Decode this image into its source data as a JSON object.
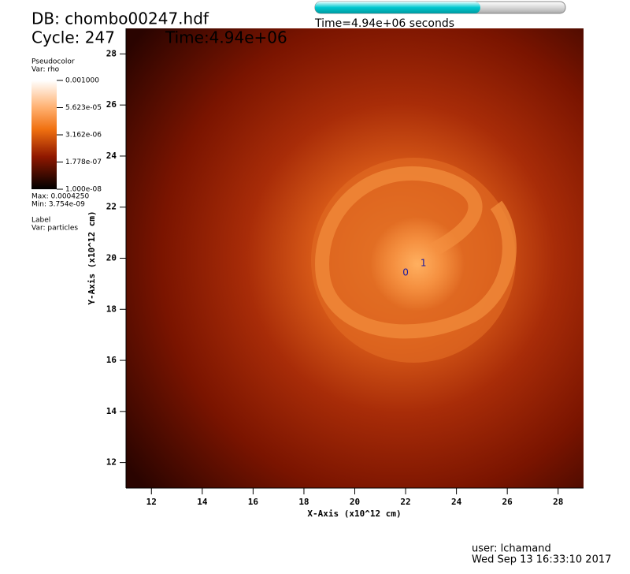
{
  "header": {
    "db": "DB: chombo00247.hdf",
    "cycle": "Cycle: 247",
    "time": "Time:4.94e+06"
  },
  "slider": {
    "label": "Time=4.94e+06 seconds",
    "fraction": 0.66
  },
  "legend": {
    "title": "Pseudocolor",
    "var": "Var: rho",
    "log": true,
    "ticks": [
      {
        "value": 0.001,
        "label": "0.001000"
      },
      {
        "value": 5.623e-05,
        "label": "5.623e-05"
      },
      {
        "value": 3.162e-06,
        "label": "3.162e-06"
      },
      {
        "value": 1.778e-07,
        "label": "1.778e-07"
      },
      {
        "value": 1e-08,
        "label": "1.000e-08"
      }
    ],
    "max": "Max: 0.0004250",
    "min": "Min:  3.754e-09"
  },
  "label_plot": {
    "title": "Label",
    "var": "Var: particles"
  },
  "plot": {
    "xlabel": "X-Axis (x10^12 cm)",
    "ylabel": "Y-Axis (x10^12 cm)",
    "xlim": [
      11,
      29
    ],
    "ylim": [
      11,
      29
    ],
    "xticks": [
      12,
      14,
      16,
      18,
      20,
      22,
      24,
      26,
      28
    ],
    "yticks": [
      12,
      14,
      16,
      18,
      20,
      22,
      24,
      26,
      28
    ],
    "particles": [
      {
        "label": "0",
        "x": 22.0,
        "y": 19.43
      },
      {
        "label": "1",
        "x": 22.7,
        "y": 19.8
      }
    ]
  },
  "footer": {
    "user": "user: lchamand",
    "date": "Wed Sep 13 16:33:10 2017"
  }
}
